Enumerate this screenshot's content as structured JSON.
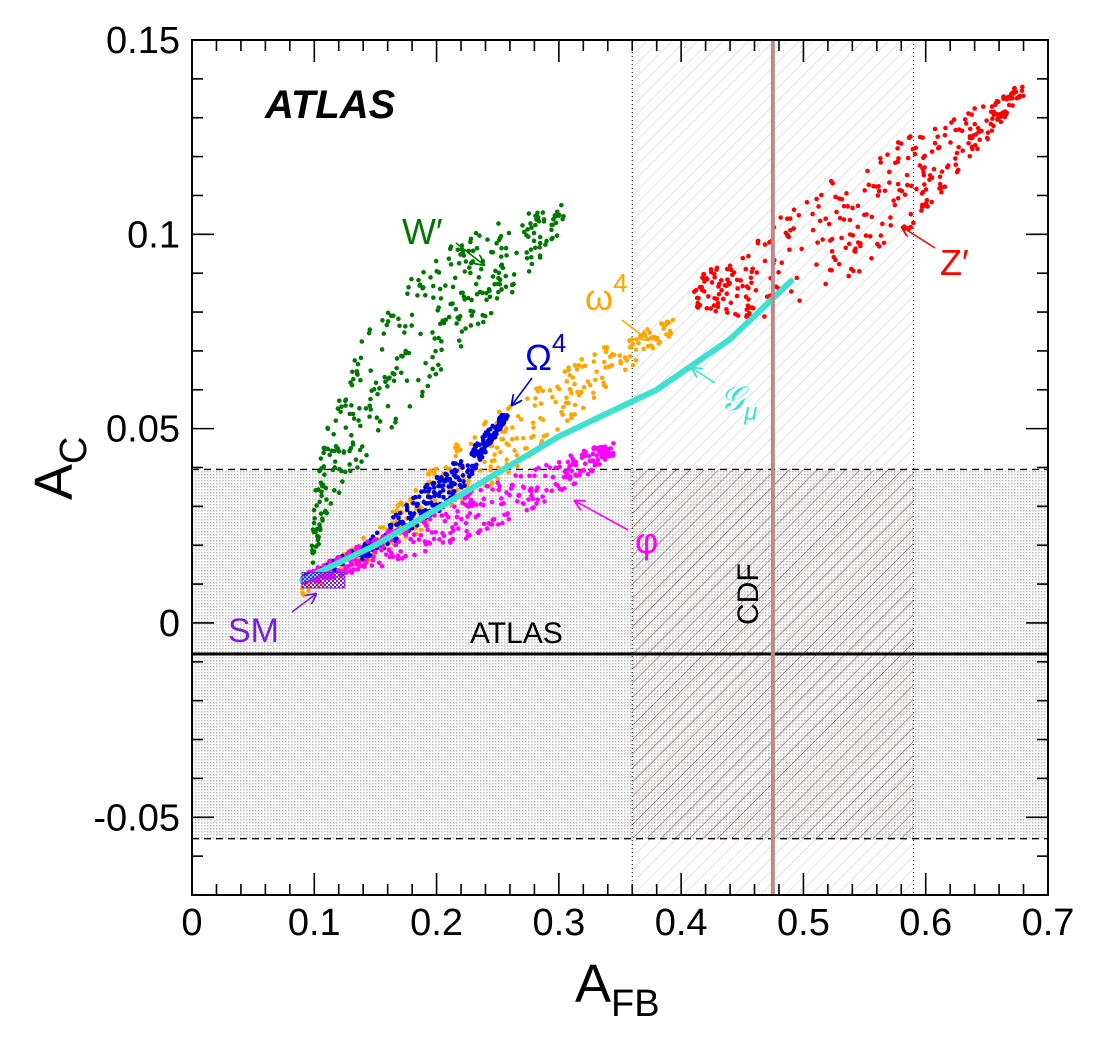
{
  "chart_data": {
    "type": "scatter",
    "title": "",
    "xlabel": "A",
    "xlabel_sub": "FB",
    "ylabel": "A",
    "ylabel_sub": "C",
    "xlim": [
      0,
      0.7
    ],
    "ylim": [
      -0.07,
      0.15
    ],
    "x_ticks": [
      {
        "v": 0,
        "label": "0"
      },
      {
        "v": 0.1,
        "label": "0.1"
      },
      {
        "v": 0.2,
        "label": "0.2"
      },
      {
        "v": 0.3,
        "label": "0.3"
      },
      {
        "v": 0.4,
        "label": "0.4"
      },
      {
        "v": 0.5,
        "label": "0.5"
      },
      {
        "v": 0.6,
        "label": "0.6"
      },
      {
        "v": 0.7,
        "label": "0.7"
      }
    ],
    "y_ticks": [
      {
        "v": -0.05,
        "label": "-0.05"
      },
      {
        "v": 0,
        "label": "0"
      },
      {
        "v": 0.05,
        "label": "0.05"
      },
      {
        "v": 0.1,
        "label": "0.1"
      },
      {
        "v": 0.15,
        "label": "0.15"
      }
    ],
    "grid": false,
    "experiment_label": "ATLAS",
    "measurements": {
      "atlas": {
        "label": "ATLAS",
        "central": -0.008,
        "band": [
          -0.0555,
          0.0395
        ]
      },
      "cdf": {
        "label": "CDF",
        "central": 0.475,
        "band": [
          0.36,
          0.59
        ]
      }
    },
    "series": [
      {
        "name": "W′",
        "color": "#007700",
        "shape": "band",
        "spine": [
          [
            0.098,
            0.02
          ],
          [
            0.11,
            0.04
          ],
          [
            0.14,
            0.058
          ],
          [
            0.18,
            0.072
          ],
          [
            0.22,
            0.085
          ],
          [
            0.26,
            0.094
          ],
          [
            0.305,
            0.105
          ]
        ],
        "width": [
          0.008,
          0.012,
          0.016,
          0.017,
          0.014,
          0.01,
          0.003
        ]
      },
      {
        "name": "Z′",
        "color": "#ff0000",
        "shape": "band",
        "spine": [
          [
            0.41,
            0.085
          ],
          [
            0.46,
            0.088
          ],
          [
            0.52,
            0.1
          ],
          [
            0.58,
            0.112
          ],
          [
            0.63,
            0.124
          ],
          [
            0.68,
            0.137
          ]
        ],
        "width": [
          0.004,
          0.01,
          0.016,
          0.013,
          0.007,
          0.002
        ]
      },
      {
        "name": "ω",
        "name_sup": "4",
        "color": "#ffa500",
        "shape": "band",
        "spine": [
          [
            0.09,
            0.009
          ],
          [
            0.15,
            0.02
          ],
          [
            0.2,
            0.034
          ],
          [
            0.27,
            0.05
          ],
          [
            0.33,
            0.064
          ],
          [
            0.395,
            0.077
          ]
        ],
        "width": [
          0.002,
          0.004,
          0.008,
          0.009,
          0.006,
          0.002
        ]
      },
      {
        "name": "Ω",
        "name_sup": "4",
        "color": "#0000dd",
        "shape": "band",
        "spine": [
          [
            0.09,
            0.011
          ],
          [
            0.14,
            0.018
          ],
          [
            0.19,
            0.03
          ],
          [
            0.225,
            0.04
          ],
          [
            0.258,
            0.054
          ]
        ],
        "width": [
          0.001,
          0.002,
          0.005,
          0.004,
          0.001
        ]
      },
      {
        "name": "φ",
        "color": "#ff00ff",
        "shape": "band",
        "spine": [
          [
            0.09,
            0.011
          ],
          [
            0.15,
            0.018
          ],
          [
            0.22,
            0.027
          ],
          [
            0.3,
            0.037
          ],
          [
            0.345,
            0.045
          ]
        ],
        "width": [
          0.0015,
          0.004,
          0.006,
          0.005,
          0.002
        ]
      },
      {
        "name": "𝒢",
        "name_sub": "μ",
        "color": "#40e0d0",
        "shape": "line",
        "points": [
          [
            0.09,
            0.011
          ],
          [
            0.15,
            0.02
          ],
          [
            0.22,
            0.033
          ],
          [
            0.3,
            0.048
          ],
          [
            0.38,
            0.06
          ],
          [
            0.44,
            0.073
          ],
          [
            0.49,
            0.088
          ]
        ]
      },
      {
        "name": "SM",
        "color": "#7a1fd8",
        "shape": "box",
        "box": [
          0.09,
          0.125,
          0.009,
          0.013
        ]
      }
    ]
  }
}
